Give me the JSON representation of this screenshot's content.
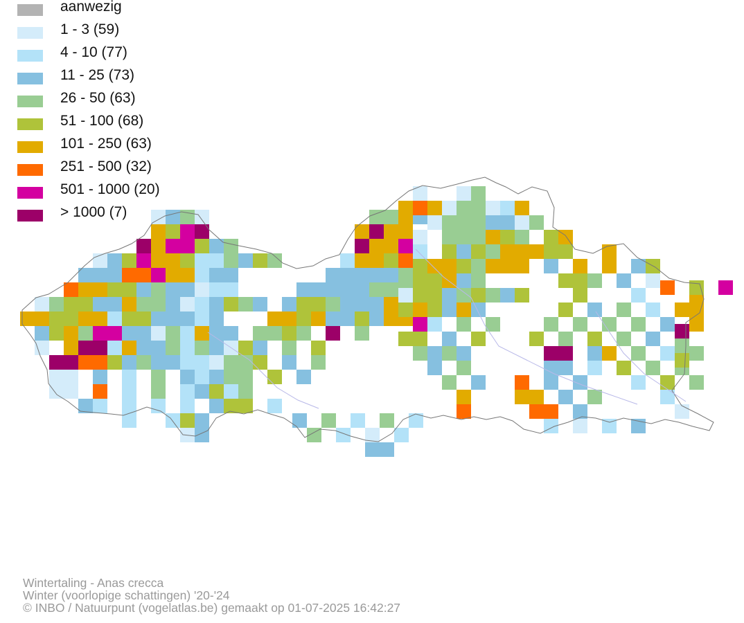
{
  "legend": {
    "items": [
      {
        "label": "aanwezig",
        "color": "#b3b3b3"
      },
      {
        "label": "1 - 3 (59)",
        "color": "#d4ecfa"
      },
      {
        "label": "4 - 10 (77)",
        "color": "#b3e2f8"
      },
      {
        "label": "11 - 25 (73)",
        "color": "#86c0e0"
      },
      {
        "label": "26 - 50 (63)",
        "color": "#99cd93"
      },
      {
        "label": "51 - 100 (68)",
        "color": "#afc33a"
      },
      {
        "label": "101 - 250 (63)",
        "color": "#e2ab00"
      },
      {
        "label": "251 - 500 (32)",
        "color": "#ff6a00"
      },
      {
        "label": "501 - 1000 (20)",
        "color": "#d400a0"
      },
      {
        "label": "> 1000 (7)",
        "color": "#9c0068"
      }
    ]
  },
  "credits": {
    "line1": "Wintertaling - Anas crecca",
    "line2": "Winter (voorlopige schattingen) '20-'24",
    "line3": "© INBO / Natuurpunt (vogelatlas.be) gemaakt op 01-07-2025 16:42:27"
  }
}
